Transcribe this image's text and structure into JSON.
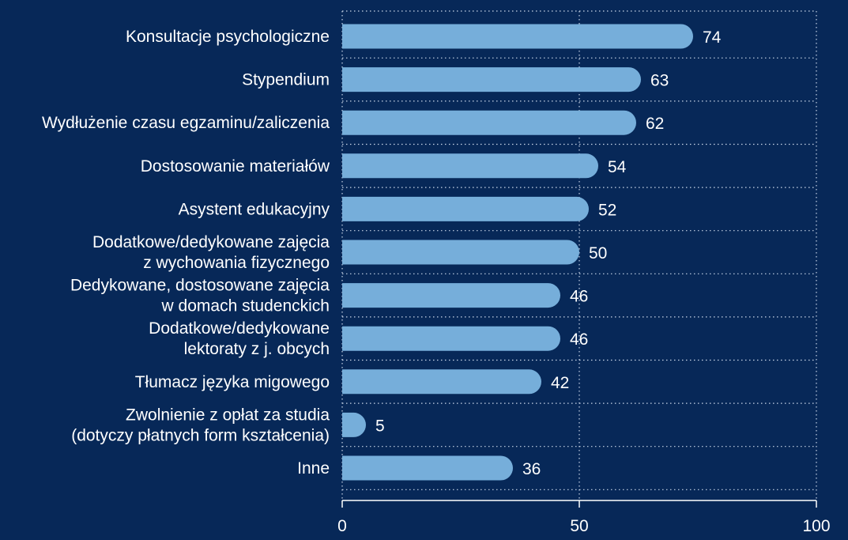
{
  "chart_data": {
    "type": "bar",
    "orientation": "horizontal",
    "categories": [
      [
        "Konsultacje psychologiczne"
      ],
      [
        "Stypendium"
      ],
      [
        "Wydłużenie czasu egzaminu/zaliczenia"
      ],
      [
        "Dostosowanie materiałów"
      ],
      [
        "Asystent edukacyjny"
      ],
      [
        "Dodatkowe/dedykowane zajęcia",
        "z wychowania fizycznego"
      ],
      [
        "Dedykowane, dostosowane zajęcia",
        "w domach studenckich"
      ],
      [
        "Dodatkowe/dedykowane",
        "lektoraty z j. obcych"
      ],
      [
        "Tłumacz języka migowego"
      ],
      [
        "Zwolnienie z opłat za studia",
        "(dotyczy płatnych form kształcenia)"
      ],
      [
        "Inne"
      ]
    ],
    "values": [
      74,
      63,
      62,
      54,
      52,
      50,
      46,
      46,
      42,
      5,
      36
    ],
    "value_labels": [
      "74",
      "63",
      "62",
      "54",
      "52",
      "50",
      "46",
      "46",
      "42",
      "5",
      "36"
    ],
    "xlim": [
      0,
      100
    ],
    "x_ticks": [
      0,
      50,
      100
    ],
    "x_tick_labels": [
      "0",
      "50",
      "100"
    ],
    "grid": "dotted vertical and horizontal",
    "legend": "none",
    "colors": {
      "background": "#072858",
      "bar": "#76AEDA",
      "grid": "#C9D6E8",
      "axis": "#FFFFFF",
      "text": "#FFFFFF"
    }
  }
}
